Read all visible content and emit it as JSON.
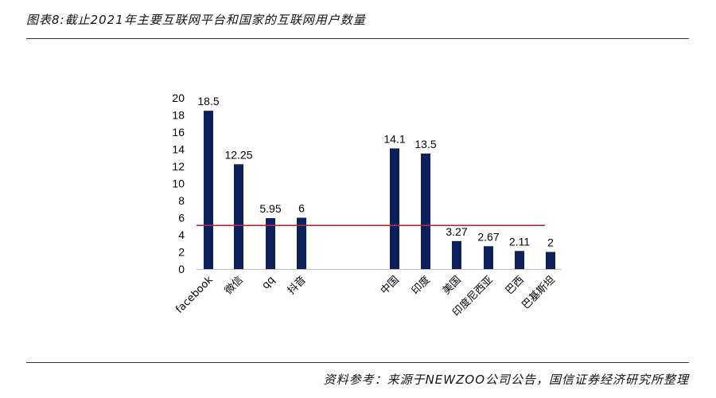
{
  "header": {
    "title": "图表8:截止2021年主要互联网平台和国家的互联网用户数量"
  },
  "footer": {
    "source": "资料参考：来源于NEWZOO公司公告，国信证券经济研究所整理"
  },
  "chart_data": {
    "type": "bar",
    "title": "",
    "xlabel": "",
    "ylabel": "",
    "ylim": [
      0,
      20
    ],
    "yticks": [
      0,
      2,
      4,
      6,
      8,
      10,
      12,
      14,
      16,
      18,
      20
    ],
    "grid": false,
    "categories": [
      "facebook",
      "微信",
      "qq",
      "抖音",
      "中国",
      "印度",
      "美国",
      "印度尼西亚",
      "巴西",
      "巴基斯坦"
    ],
    "values": [
      18.5,
      12.25,
      5.95,
      6,
      14.1,
      13.5,
      3.27,
      2.67,
      2.11,
      2
    ],
    "value_labels": [
      "18.5",
      "12.25",
      "5.95",
      "6",
      "14.1",
      "13.5",
      "3.27",
      "2.67",
      "2.11",
      "2"
    ],
    "reference_line": 5.1,
    "bar_color": "#0d1f5c",
    "reference_line_color": "#c0282d"
  }
}
